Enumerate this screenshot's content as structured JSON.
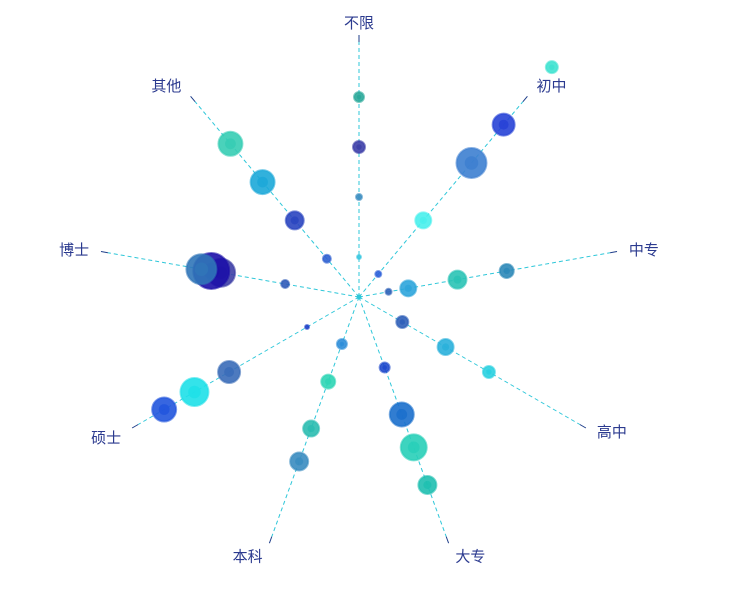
{
  "chart_data": {
    "type": "scatter",
    "categories": [
      "不限",
      "初中",
      "中专",
      "高中",
      "大专",
      "本科",
      "硕士",
      "博士",
      "其他"
    ],
    "series": [
      {
        "values": [
          [
            8,
            20,
            30,
            40
          ],
          [
            6,
            20,
            35,
            45,
            60
          ],
          [
            6,
            10,
            20,
            30
          ],
          [
            10,
            20,
            30
          ],
          [
            15,
            25,
            32,
            40
          ],
          [
            10,
            18,
            28,
            35
          ],
          [
            12,
            30,
            38,
            45
          ],
          [
            15,
            28,
            30,
            32
          ],
          [
            10,
            20,
            30,
            40
          ]
        ],
        "sizes": [
          [
            2,
            3,
            6,
            5
          ],
          [
            3,
            8,
            15,
            11,
            6
          ],
          [
            3,
            8,
            9,
            7
          ],
          [
            6,
            8,
            6
          ],
          [
            5,
            12,
            13,
            9
          ],
          [
            5,
            7,
            8,
            9
          ],
          [
            2,
            11,
            14,
            12
          ],
          [
            4,
            14,
            18,
            15
          ],
          [
            4,
            9,
            12,
            12
          ]
        ],
        "colors": [
          [
            "#36c6e0",
            "#3a8cc0",
            "#3d3fa8",
            "#2aa89a"
          ],
          [
            "#2c5fd9",
            "#4af0ec",
            "#3d7fd0",
            "#2742d6",
            "#3fe2d0"
          ],
          [
            "#3063b8",
            "#2ea5db",
            "#2ac3b5",
            "#2d88b8"
          ],
          [
            "#2f5fb8",
            "#2ab0db",
            "#2ad0e0"
          ],
          [
            "#1f49cc",
            "#1b6fcc",
            "#28cfb8",
            "#1fbfb0"
          ],
          [
            "#2d8dd8",
            "#2ed5b5",
            "#2bbcb0",
            "#3a8cc0"
          ],
          [
            "#1e40c8",
            "#3a6cb8",
            "#1ee0e8",
            "#2155dd"
          ],
          [
            "#2f5ab8",
            "#3e3fa6",
            "#1c10a8",
            "#3075b8"
          ],
          [
            "#2e5fd0",
            "#2a45c0",
            "#1ca8d8",
            "#36cdb4"
          ]
        ]
      }
    ],
    "rlim": [
      0,
      48
    ],
    "legend": "none",
    "colors": {
      "axis": "#2ec7d9",
      "label": "#2b3a8f",
      "leader": "#1f3e8a"
    }
  }
}
